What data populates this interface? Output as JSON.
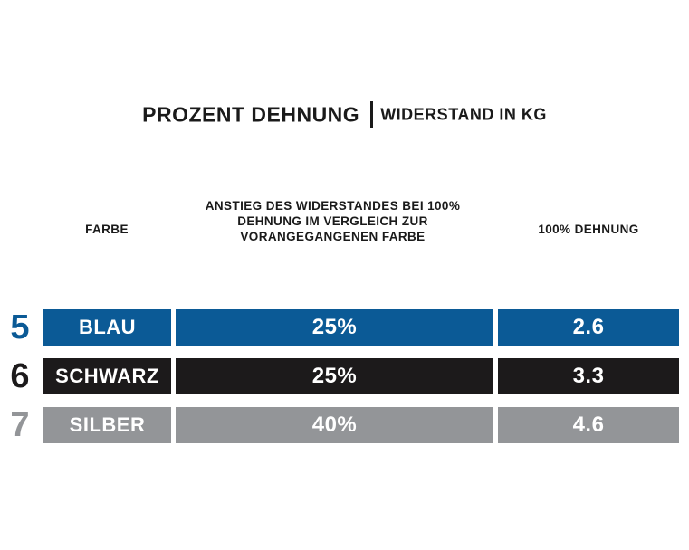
{
  "chart_data": {
    "type": "table",
    "title": "PROZENT DEHNUNG",
    "subtitle": "WIDERSTAND IN KG",
    "columns": [
      "FARBE",
      "ANSTIEG DES WIDERSTANDES BEI 100% DEHNUNG IM VERGLEICH ZUR VORANGEGANGENEN FARBE",
      "100% DEHNUNG"
    ],
    "header_lines": {
      "anstieg": [
        "ANSTIEG DES WIDERSTANDES BEI 100%",
        "DEHNUNG IM VERGLEICH ZUR",
        "VORANGEGANGENEN FARBE"
      ]
    },
    "rows": [
      {
        "level": "5",
        "farbe": "BLAU",
        "anstieg": "25%",
        "dehnung": "2.6",
        "color": "#0b5a96",
        "num_color": "#0b5a96"
      },
      {
        "level": "6",
        "farbe": "SCHWARZ",
        "anstieg": "25%",
        "dehnung": "3.3",
        "color": "#1c1a1b",
        "num_color": "#1c1a1b"
      },
      {
        "level": "7",
        "farbe": "SILBER",
        "anstieg": "40%",
        "dehnung": "4.6",
        "color": "#939598",
        "num_color": "#939598"
      }
    ]
  }
}
